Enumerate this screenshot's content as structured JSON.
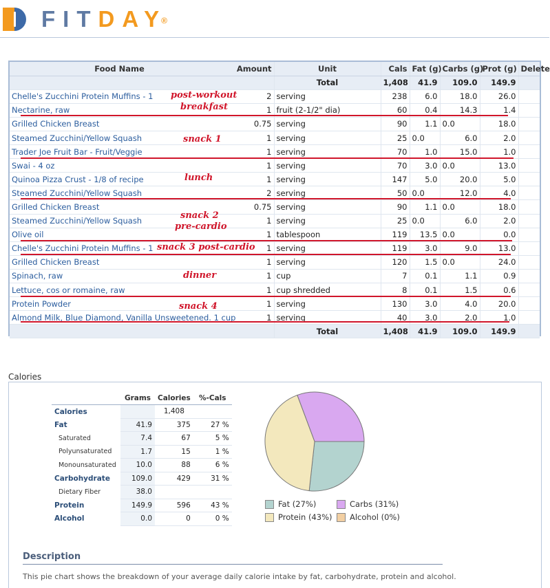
{
  "brand": {
    "name_fit": "FIT",
    "name_day": "DAY",
    "reg": "®"
  },
  "food_table": {
    "headers": {
      "name": "Food Name",
      "amount": "Amount",
      "unit": "Unit",
      "cals": "Cals",
      "fat": "Fat (g)",
      "carbs": "Carbs (g)",
      "prot": "Prot (g)",
      "delete": "Delete"
    },
    "top_total": {
      "label": "Total",
      "cals": "1,408",
      "fat": "41.9",
      "carbs": "109.0",
      "prot": "149.9"
    },
    "rows": [
      {
        "name": "Chelle's Zucchini Protein Muffins - 1",
        "amount": "2",
        "unit": "serving",
        "cals": "238",
        "fat": "6.0",
        "carbs": "18.0",
        "prot": "26.0"
      },
      {
        "name": "Nectarine, raw",
        "amount": "1",
        "unit": "fruit (2-1/2\" dia)",
        "cals": "60",
        "fat": "0.4",
        "carbs": "14.3",
        "prot": "1.4"
      },
      {
        "name": "Grilled Chicken Breast",
        "amount": "0.75",
        "unit": "serving",
        "cals": "90",
        "fat": "1.1",
        "carbs": "0.0",
        "prot": "18.0"
      },
      {
        "name": "Steamed Zucchini/Yellow Squash",
        "amount": "1",
        "unit": "serving",
        "cals": "25",
        "fat": "0.0",
        "carbs": "6.0",
        "prot": "2.0"
      },
      {
        "name": "Trader Joe Fruit Bar - Fruit/Veggie",
        "amount": "1",
        "unit": "serving",
        "cals": "70",
        "fat": "1.0",
        "carbs": "15.0",
        "prot": "1.0"
      },
      {
        "name": "Swai - 4 oz",
        "amount": "1",
        "unit": "serving",
        "cals": "70",
        "fat": "3.0",
        "carbs": "0.0",
        "prot": "13.0"
      },
      {
        "name": "Quinoa Pizza Crust - 1/8 of recipe",
        "amount": "1",
        "unit": "serving",
        "cals": "147",
        "fat": "5.0",
        "carbs": "20.0",
        "prot": "5.0"
      },
      {
        "name": "Steamed Zucchini/Yellow Squash",
        "amount": "2",
        "unit": "serving",
        "cals": "50",
        "fat": "0.0",
        "carbs": "12.0",
        "prot": "4.0"
      },
      {
        "name": "Grilled Chicken Breast",
        "amount": "0.75",
        "unit": "serving",
        "cals": "90",
        "fat": "1.1",
        "carbs": "0.0",
        "prot": "18.0"
      },
      {
        "name": "Steamed Zucchini/Yellow Squash",
        "amount": "1",
        "unit": "serving",
        "cals": "25",
        "fat": "0.0",
        "carbs": "6.0",
        "prot": "2.0"
      },
      {
        "name": "Olive oil",
        "amount": "1",
        "unit": "tablespoon",
        "cals": "119",
        "fat": "13.5",
        "carbs": "0.0",
        "prot": "0.0"
      },
      {
        "name": "Chelle's Zucchini Protein Muffins - 1",
        "amount": "1",
        "unit": "serving",
        "cals": "119",
        "fat": "3.0",
        "carbs": "9.0",
        "prot": "13.0"
      },
      {
        "name": "Grilled Chicken Breast",
        "amount": "1",
        "unit": "serving",
        "cals": "120",
        "fat": "1.5",
        "carbs": "0.0",
        "prot": "24.0"
      },
      {
        "name": "Spinach, raw",
        "amount": "1",
        "unit": "cup",
        "cals": "7",
        "fat": "0.1",
        "carbs": "1.1",
        "prot": "0.9"
      },
      {
        "name": "Lettuce, cos or romaine, raw",
        "amount": "1",
        "unit": "cup shredded",
        "cals": "8",
        "fat": "0.1",
        "carbs": "1.5",
        "prot": "0.6"
      },
      {
        "name": "Protein Powder",
        "amount": "1",
        "unit": "serving",
        "cals": "130",
        "fat": "3.0",
        "carbs": "4.0",
        "prot": "20.0"
      },
      {
        "name": "Almond Milk, Blue Diamond, Vanilla Unsweetened. 1 cup",
        "amount": "1",
        "unit": "serving",
        "cals": "40",
        "fat": "3.0",
        "carbs": "2.0",
        "prot": "1.0"
      }
    ],
    "bottom_total": {
      "label": "Total",
      "cals": "1,408",
      "fat": "41.9",
      "carbs": "109.0",
      "prot": "149.9"
    }
  },
  "annotations": {
    "post_workout": "post-workout",
    "breakfast": "breakfast",
    "snack1": "snack 1",
    "lunch": "lunch",
    "snack2": "snack 2",
    "pre_cardio": "pre-cardio",
    "snack3": "snack 3 post-cardio",
    "dinner": "dinner",
    "snack4": "snack 4",
    "color": "#d0152a"
  },
  "calories_section": {
    "title": "Calories",
    "table": {
      "headers": {
        "grams": "Grams",
        "calories": "Calories",
        "pct": "%-Cals"
      },
      "rows": [
        {
          "label": "Calories",
          "grams": "",
          "calories": "1,408",
          "pct": ""
        },
        {
          "label": "Fat",
          "grams": "41.9",
          "calories": "375",
          "pct": "27 %"
        },
        {
          "label": "Saturated",
          "grams": "7.4",
          "calories": "67",
          "pct": "5 %"
        },
        {
          "label": "Polyunsaturated",
          "grams": "1.7",
          "calories": "15",
          "pct": "1 %"
        },
        {
          "label": "Monounsaturated",
          "grams": "10.0",
          "calories": "88",
          "pct": "6 %"
        },
        {
          "label": "Carbohydrate",
          "grams": "109.0",
          "calories": "429",
          "pct": "31 %"
        },
        {
          "label": "Dietary Fiber",
          "grams": "38.0",
          "calories": "",
          "pct": ""
        },
        {
          "label": "Protein",
          "grams": "149.9",
          "calories": "596",
          "pct": "43 %"
        },
        {
          "label": "Alcohol",
          "grams": "0.0",
          "calories": "0",
          "pct": "0 %"
        }
      ]
    },
    "chart_data": {
      "type": "pie",
      "slices": [
        {
          "label": "Fat",
          "value": 27,
          "color": "#b3d3cf"
        },
        {
          "label": "Carbs",
          "value": 31,
          "color": "#d9a8f0"
        },
        {
          "label": "Protein",
          "value": 43,
          "color": "#f3e8bd"
        },
        {
          "label": "Alcohol",
          "value": 0,
          "color": "#f2cfa2"
        }
      ]
    },
    "legend": [
      {
        "label": "Fat  (27%)",
        "color": "#b3d3cf"
      },
      {
        "label": "Carbs  (31%)",
        "color": "#d9a8f0"
      },
      {
        "label": "Protein  (43%)",
        "color": "#f3e8bd"
      },
      {
        "label": "Alcohol  (0%)",
        "color": "#f2cfa2"
      }
    ],
    "description_title": "Description",
    "description_text": "This pie chart shows the breakdown of your average daily calorie intake by fat, carbohydrate, protein and alcohol."
  }
}
